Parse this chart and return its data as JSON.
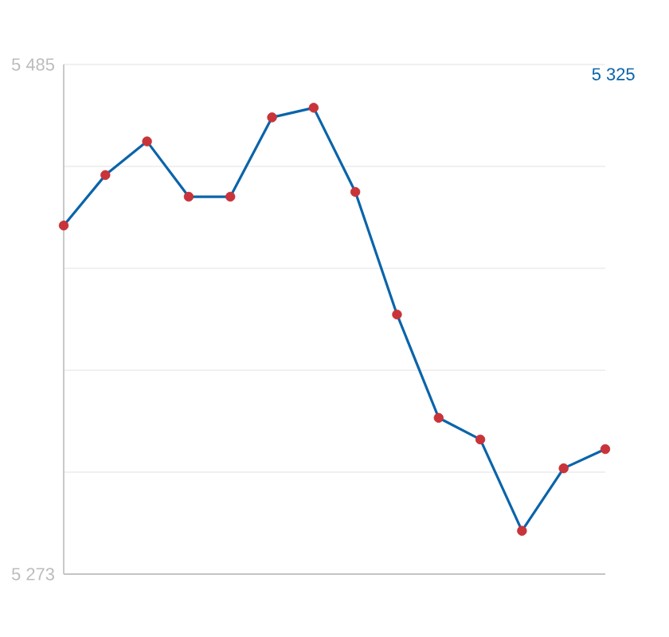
{
  "chart_data": {
    "type": "line",
    "categories": [
      null,
      null,
      null,
      null,
      null,
      null,
      null,
      null,
      null,
      null,
      null,
      null,
      null,
      null
    ],
    "series": [
      {
        "color": "#0a64aa",
        "colors": [
          "#c8343a",
          "#c8343a",
          "#c8343a",
          "#c8343a",
          "#c8343a",
          "#c8343a",
          "#c8343a",
          "#c8343a",
          "#c8343a",
          "#c8343a",
          "#c8343a",
          "#c8343a",
          "#c8343a",
          "#c8343a"
        ],
        "values": [
          5418,
          5439,
          5453,
          5430,
          5430,
          5463,
          5467,
          5432,
          5381,
          5338,
          5329,
          5291,
          5317,
          5325
        ]
      }
    ],
    "ylim": [
      5273,
      5485
    ],
    "yticks": [
      {
        "value": 5273,
        "label": "5 273"
      },
      {
        "value": 5315.4,
        "label": null
      },
      {
        "value": 5357.8,
        "label": null
      },
      {
        "value": 5400.2,
        "label": null
      },
      {
        "value": 5442.6,
        "label": null
      },
      {
        "value": 5485,
        "label": "5 485"
      }
    ],
    "annotations": [
      "5 325"
    ],
    "grid": "y",
    "tick_labels": "y",
    "marker": "circle",
    "line_style": "solid"
  }
}
